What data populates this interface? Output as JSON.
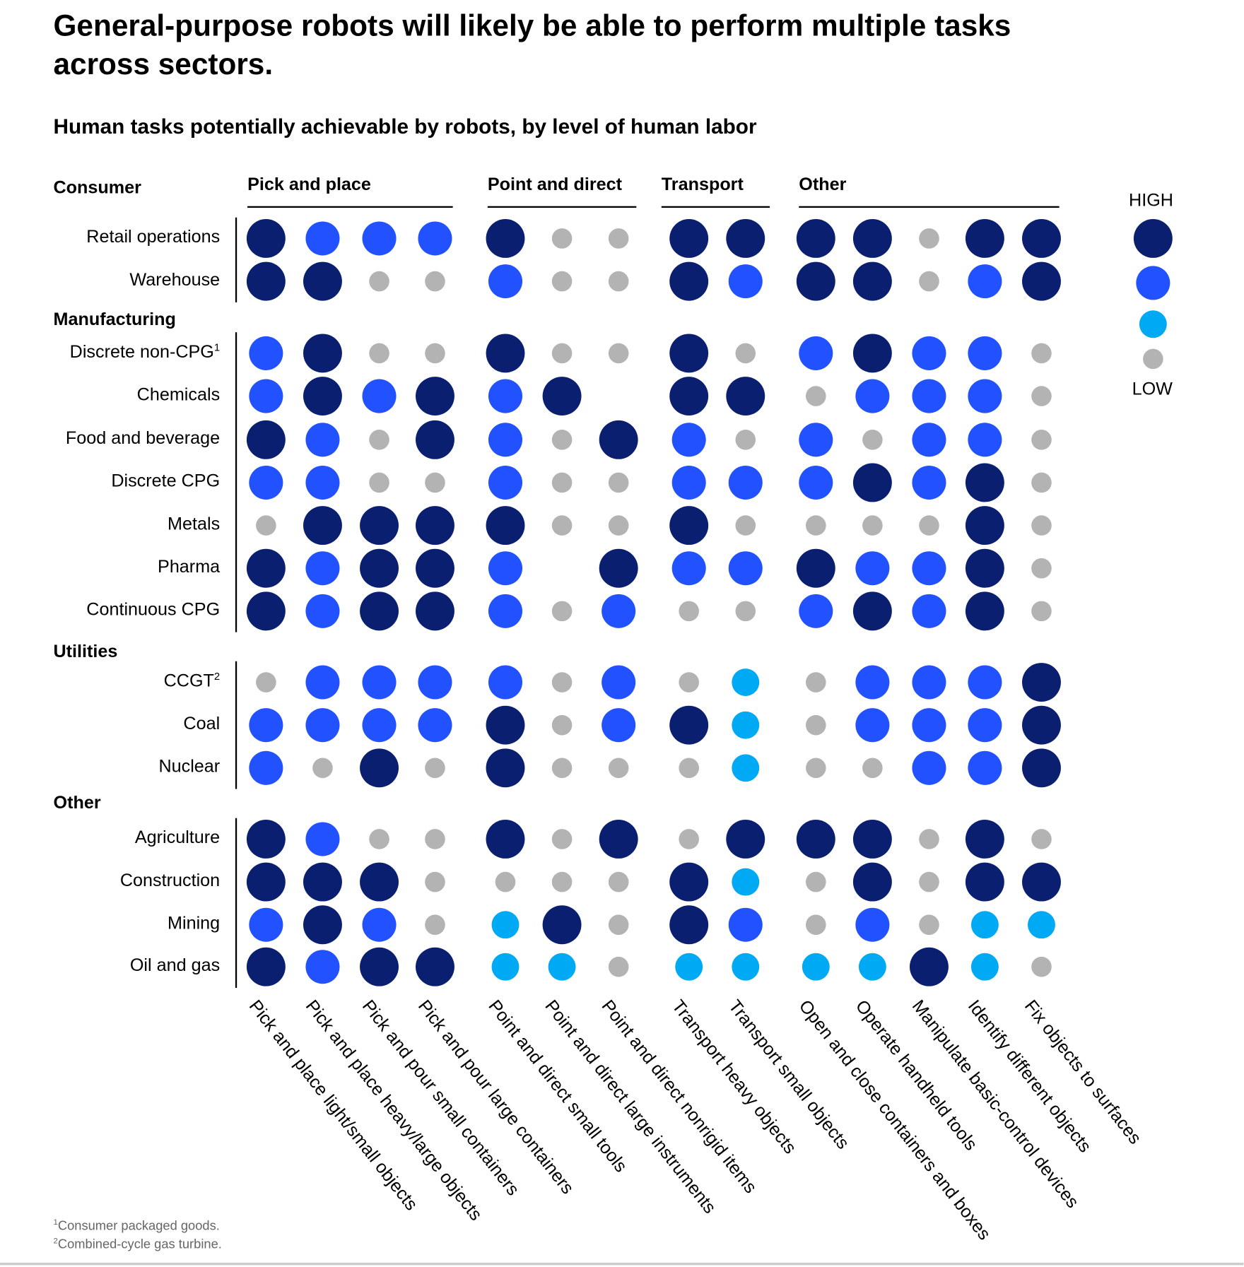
{
  "chart_data": {
    "type": "table",
    "title": "General-purpose robots will likely be able to perform multiple tasks across sectors.",
    "subtitle": "Human tasks potentially achievable by robots, by level of human labor",
    "level_scale": {
      "0": "none",
      "1": "low",
      "2": "medium-low",
      "3": "medium-high",
      "4": "high"
    },
    "colors": {
      "4": "#0b1f71",
      "3": "#2251ff",
      "2": "#00a9f4",
      "1": "#b3b3b3"
    },
    "column_groups": [
      {
        "label": "Pick and place",
        "span": 4
      },
      {
        "label": "Point and direct",
        "span": 3
      },
      {
        "label": "Transport",
        "span": 2
      },
      {
        "label": "Other",
        "span": 5
      }
    ],
    "columns": [
      "Pick and place light/small objects",
      "Pick and place heavy/large objects",
      "Pick and pour small containers",
      "Pick and pour large containers",
      "Point and direct small tools",
      "Point and direct large instruments",
      "Point and direct nonrigid items",
      "Transport heavy objects",
      "Transport small objects",
      "Open and close containers and boxes",
      "Operate handheld tools",
      "Manipulate basic-control devices",
      "Identify different objects",
      "Fix objects to surfaces"
    ],
    "row_groups": [
      {
        "label": "Consumer",
        "rows": [
          {
            "label": "Retail operations",
            "sup": "",
            "values": [
              4,
              3,
              3,
              3,
              4,
              1,
              1,
              4,
              4,
              4,
              4,
              1,
              4,
              4
            ]
          },
          {
            "label": "Warehouse",
            "sup": "",
            "values": [
              4,
              4,
              1,
              1,
              3,
              1,
              1,
              4,
              3,
              4,
              4,
              1,
              3,
              4
            ]
          }
        ]
      },
      {
        "label": "Manufacturing",
        "rows": [
          {
            "label": "Discrete non-CPG",
            "sup": "1",
            "values": [
              3,
              4,
              1,
              1,
              4,
              1,
              1,
              4,
              1,
              3,
              4,
              3,
              3,
              1
            ]
          },
          {
            "label": "Chemicals",
            "sup": "",
            "values": [
              3,
              4,
              3,
              4,
              3,
              4,
              0,
              4,
              4,
              1,
              3,
              3,
              3,
              1
            ]
          },
          {
            "label": "Food and beverage",
            "sup": "",
            "values": [
              4,
              3,
              1,
              4,
              3,
              1,
              4,
              3,
              1,
              3,
              1,
              3,
              3,
              1
            ]
          },
          {
            "label": "Discrete CPG",
            "sup": "",
            "values": [
              3,
              3,
              1,
              1,
              3,
              1,
              1,
              3,
              3,
              3,
              4,
              3,
              4,
              1
            ]
          },
          {
            "label": "Metals",
            "sup": "",
            "values": [
              1,
              4,
              4,
              4,
              4,
              1,
              1,
              4,
              1,
              1,
              1,
              1,
              4,
              1
            ]
          },
          {
            "label": "Pharma",
            "sup": "",
            "values": [
              4,
              3,
              4,
              4,
              3,
              0,
              4,
              3,
              3,
              4,
              3,
              3,
              4,
              1
            ]
          },
          {
            "label": "Continuous CPG",
            "sup": "",
            "values": [
              4,
              3,
              4,
              4,
              3,
              1,
              3,
              1,
              1,
              3,
              4,
              3,
              4,
              1
            ]
          }
        ]
      },
      {
        "label": "Utilities",
        "rows": [
          {
            "label": "CCGT",
            "sup": "2",
            "values": [
              1,
              3,
              3,
              3,
              3,
              1,
              3,
              1,
              2,
              1,
              3,
              3,
              3,
              4
            ]
          },
          {
            "label": "Coal",
            "sup": "",
            "values": [
              3,
              3,
              3,
              3,
              4,
              1,
              3,
              4,
              2,
              1,
              3,
              3,
              3,
              4
            ]
          },
          {
            "label": "Nuclear",
            "sup": "",
            "values": [
              3,
              1,
              4,
              1,
              4,
              1,
              1,
              1,
              2,
              1,
              1,
              3,
              3,
              4
            ]
          }
        ]
      },
      {
        "label": "Other",
        "rows": [
          {
            "label": "Agriculture",
            "sup": "",
            "values": [
              4,
              3,
              1,
              1,
              4,
              1,
              4,
              1,
              4,
              4,
              4,
              1,
              4,
              1
            ]
          },
          {
            "label": "Construction",
            "sup": "",
            "values": [
              4,
              4,
              4,
              1,
              1,
              1,
              1,
              4,
              2,
              1,
              4,
              1,
              4,
              4
            ]
          },
          {
            "label": "Mining",
            "sup": "",
            "values": [
              3,
              4,
              3,
              1,
              2,
              4,
              1,
              4,
              3,
              1,
              3,
              1,
              2,
              2
            ]
          },
          {
            "label": "Oil and gas",
            "sup": "",
            "values": [
              4,
              3,
              4,
              4,
              2,
              2,
              1,
              2,
              2,
              2,
              2,
              4,
              2,
              1
            ]
          }
        ]
      }
    ],
    "legend": {
      "high": "HIGH",
      "low": "LOW",
      "levels": [
        4,
        3,
        2,
        1
      ],
      "placement": "right"
    }
  },
  "footnotes": [
    {
      "sup": "1",
      "text": "Consumer packaged goods."
    },
    {
      "sup": "2",
      "text": "Combined-cycle gas turbine."
    }
  ]
}
